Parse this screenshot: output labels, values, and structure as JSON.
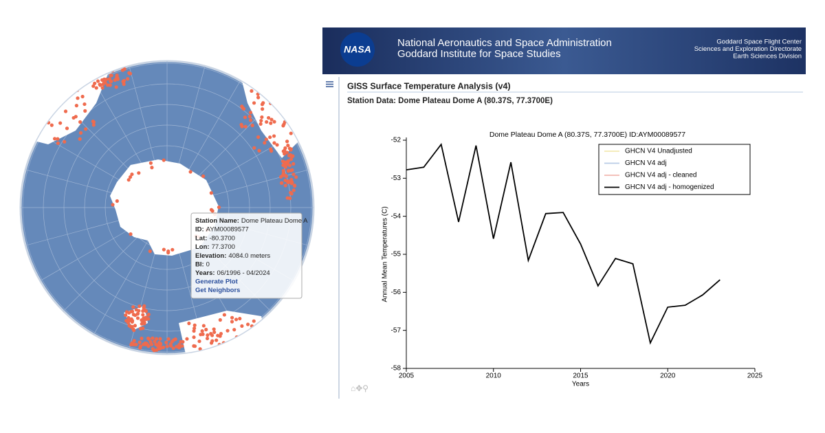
{
  "header": {
    "logo": "NASA",
    "title": "National Aeronautics and Space Administration",
    "subtitle": "Goddard Institute for Space Studies",
    "org_lines": [
      "Goddard Space Flight Center",
      "Sciences and Exploration Directorate",
      "Earth Sciences Division"
    ]
  },
  "page": {
    "title": "GISS Surface Temperature Analysis (v4)",
    "heading": "Station Data: Dome Plateau Dome A (80.37S, 77.3700E)"
  },
  "tooltip": {
    "fields": [
      {
        "label": "Station Name:",
        "value": "Dome Plateau Dome A"
      },
      {
        "label": "ID:",
        "value": "AYM00089577"
      },
      {
        "label": "Lat:",
        "value": "-80.3700"
      },
      {
        "label": "Lon:",
        "value": "77.3700"
      },
      {
        "label": "Elevation:",
        "value": "4084.0 meters"
      },
      {
        "label": "BI:",
        "value": "0"
      },
      {
        "label": "Years:",
        "value": "06/1996 - 04/2024"
      }
    ],
    "links": [
      "Generate Plot",
      "Get Neighbors"
    ]
  },
  "chart_data": {
    "type": "line",
    "title": "Dome Plateau Dome A (80.37S, 77.3700E) ID:AYM00089577",
    "x_label": "Years",
    "y_label": "Annual Mean Temperatures (C)",
    "x": [
      2005,
      2006,
      2007,
      2008,
      2009,
      2010,
      2011,
      2012,
      2013,
      2014,
      2015,
      2016,
      2017,
      2018,
      2019,
      2020,
      2021,
      2022,
      2023
    ],
    "series": [
      {
        "name": "GHCN V4 Unadjusted",
        "color": "#f3e9b0"
      },
      {
        "name": "GHCN V4 adj",
        "color": "#b9cbe6"
      },
      {
        "name": "GHCN V4 adj - cleaned",
        "color": "#f2b8b0"
      },
      {
        "name": "GHCN V4 adj - homogenized",
        "color": "#000000",
        "values": [
          -52.78,
          -52.71,
          -52.11,
          -54.15,
          -52.14,
          -54.59,
          -52.58,
          -55.16,
          -53.93,
          -53.9,
          -54.73,
          -55.83,
          -55.11,
          -55.25,
          -57.33,
          -56.39,
          -56.34,
          -56.07,
          -55.67
        ]
      }
    ],
    "xlim": [
      2005,
      2025
    ],
    "xticks": [
      2005,
      2010,
      2015,
      2020,
      2025
    ],
    "ylim": [
      -58,
      -52
    ],
    "yticks": [
      -58,
      -57,
      -56,
      -55,
      -54,
      -53,
      -52
    ],
    "legend": "upper right"
  }
}
